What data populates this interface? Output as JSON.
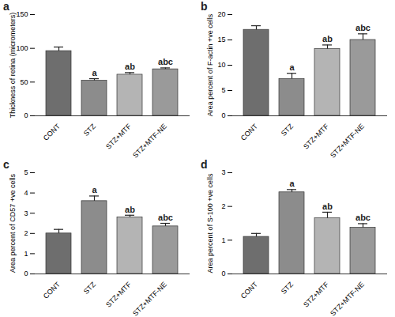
{
  "chart_data": [
    {
      "type": "bar",
      "title": "a",
      "categories": [
        "CONT",
        "STZ",
        "STZ+MTF",
        "STZ+MTF-NE"
      ],
      "values": [
        96,
        52,
        61,
        69
      ],
      "errors": [
        6,
        3,
        3,
        2
      ],
      "annotations": [
        null,
        "a",
        "ab",
        "abc"
      ],
      "y_label": "Thickness of retina (micrometers)",
      "colors": [
        "#6e6e6e",
        "#8c8c8c",
        "#b4b4b4",
        "#9a9a9a"
      ],
      "ylim": [
        0,
        150
      ],
      "yticks": [
        0,
        50,
        100,
        150
      ]
    },
    {
      "type": "bar",
      "title": "b",
      "categories": [
        "CONT",
        "STZ",
        "STZ+MTF",
        "STZ+MTF-NE"
      ],
      "values": [
        17,
        7.3,
        13.2,
        15
      ],
      "errors": [
        0.8,
        1.1,
        0.8,
        1.2
      ],
      "annotations": [
        null,
        "a",
        "ab",
        "abc"
      ],
      "y_label": "Area percent of F-actin +ve cells",
      "colors": [
        "#6e6e6e",
        "#8c8c8c",
        "#b4b4b4",
        "#9a9a9a"
      ],
      "ylim": [
        0,
        20
      ],
      "yticks": [
        0,
        5,
        10,
        15,
        20
      ]
    },
    {
      "type": "bar",
      "title": "c",
      "categories": [
        "CONT",
        "STZ",
        "STZ+MTF",
        "STZ+MTF-NE"
      ],
      "values": [
        2.0,
        3.6,
        2.8,
        2.35
      ],
      "errors": [
        0.2,
        0.25,
        0.1,
        0.15
      ],
      "annotations": [
        null,
        "a",
        "ab",
        "abc"
      ],
      "y_label": "Area percent of CD57 +ve cells",
      "colors": [
        "#6e6e6e",
        "#8c8c8c",
        "#b4b4b4",
        "#9a9a9a"
      ],
      "ylim": [
        0,
        5
      ],
      "yticks": [
        0,
        1,
        2,
        3,
        4,
        5
      ]
    },
    {
      "type": "bar",
      "title": "d",
      "categories": [
        "CONT",
        "STZ",
        "STZ+MTF",
        "STZ+MTF-NE"
      ],
      "values": [
        1.1,
        2.42,
        1.65,
        1.37
      ],
      "errors": [
        0.1,
        0.08,
        0.18,
        0.12
      ],
      "annotations": [
        null,
        "a",
        "ab",
        "abc"
      ],
      "y_label": "Area percent of S-100 +ve cells",
      "colors": [
        "#6e6e6e",
        "#8c8c8c",
        "#b4b4b4",
        "#9a9a9a"
      ],
      "ylim": [
        0,
        3
      ],
      "yticks": [
        0,
        1,
        2,
        3
      ]
    }
  ]
}
